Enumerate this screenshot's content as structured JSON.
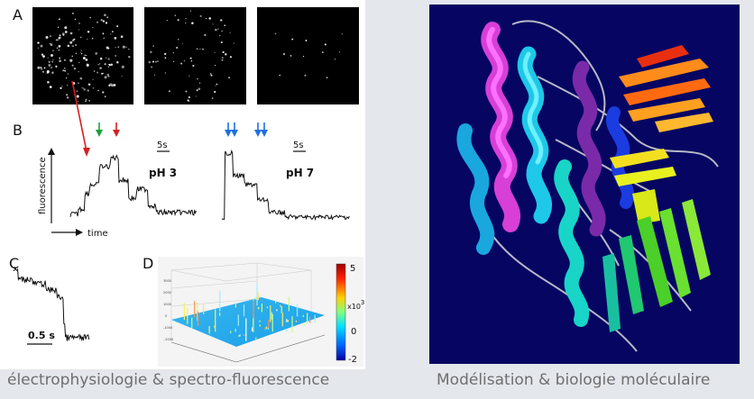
{
  "figure": {
    "panels": {
      "a": "A",
      "b": "B",
      "c": "C",
      "d": "D"
    },
    "traces": {
      "scalebar_left": "5s",
      "scalebar_right": "5s",
      "ph_left": "pH 3",
      "ph_right": "pH 7",
      "ylabel": "fluorescence",
      "xlabel": "time"
    },
    "trace_c": {
      "scalebar": "0.5 s"
    },
    "surface_d": {
      "colorbar_ticks": [
        "5",
        "0",
        "-2"
      ],
      "colorbar_exponent": "x10",
      "colorbar_exponent_power": "3",
      "colorbar_colors": [
        "#ff0000",
        "#ffff00",
        "#00ffff",
        "#0000ff"
      ]
    },
    "arrow_colors": {
      "red": "#d42020",
      "green": "#1aa13a",
      "blue": "#1f6fe0"
    }
  },
  "captions": {
    "left": "électrophysiologie & spectro-fluorescence",
    "right": "Modélisation & biologie moléculaire"
  }
}
